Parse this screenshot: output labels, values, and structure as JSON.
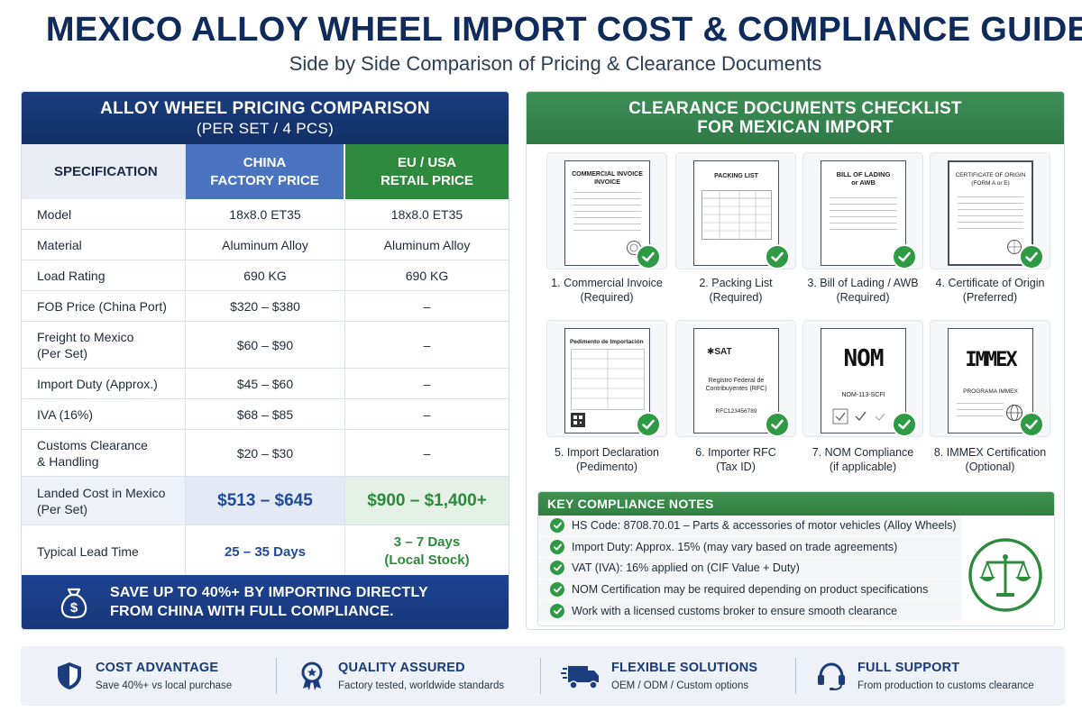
{
  "title": "MEXICO ALLOY WHEEL IMPORT COST & COMPLIANCE GUIDE",
  "subtitle": "Side by Side Comparison of Pricing & Clearance Documents",
  "pricing": {
    "header_line1": "ALLOY WHEEL PRICING COMPARISON",
    "header_line2": "(PER SET / 4 PCS)",
    "columns": {
      "spec": "SPECIFICATION",
      "china_line1": "CHINA",
      "china_line2": "FACTORY PRICE",
      "eu_line1": "EU / USA",
      "eu_line2": "RETAIL PRICE"
    },
    "rows": [
      {
        "spec": "Model",
        "china": "18x8.0 ET35",
        "eu": "18x8.0 ET35"
      },
      {
        "spec": "Material",
        "china": "Aluminum Alloy",
        "eu": "Aluminum Alloy"
      },
      {
        "spec": "Load Rating",
        "china": "690 KG",
        "eu": "690 KG"
      },
      {
        "spec": "FOB Price (China Port)",
        "china": "$320 – $380",
        "eu": "–"
      },
      {
        "spec": "Freight to Mexico (Per Set)",
        "china": "$60 – $90",
        "eu": "–"
      },
      {
        "spec": "Import Duty (Approx.)",
        "china": "$45 – $60",
        "eu": "–"
      },
      {
        "spec": "IVA (16%)",
        "china": "$68 – $85",
        "eu": "–"
      },
      {
        "spec": "Customs Clearance & Handling",
        "china": "$20 – $30",
        "eu": "–"
      }
    ],
    "landed": {
      "spec_line1": "Landed Cost in Mexico",
      "spec_line2": "(Per Set)",
      "china": "$513 – $645",
      "eu": "$900 – $1,400+"
    },
    "lead": {
      "spec": "Typical Lead Time",
      "china": "25 – 35 Days",
      "eu_line1": "3 – 7 Days",
      "eu_line2": "(Local Stock)"
    },
    "footer_line1": "SAVE UP TO 40%+ BY IMPORTING DIRECTLY",
    "footer_line2": "FROM CHINA WITH FULL COMPLIANCE."
  },
  "documents": {
    "header_line1": "CLEARANCE DOCUMENTS CHECKLIST",
    "header_line2": "FOR MEXICAN IMPORT",
    "items": [
      {
        "doc_title": "COMMERCIAL INVOICE\nINVOICE",
        "label1": "1. Commercial Invoice",
        "label2": "(Required)",
        "icon": "commercial-invoice-document-icon"
      },
      {
        "doc_title": "PACKING LIST",
        "label1": "2. Packing List",
        "label2": "(Required)",
        "icon": "packing-list-document-icon"
      },
      {
        "doc_title": "BILL OF LADING\nor AWB",
        "label1": "3. Bill of Lading / AWB",
        "label2": "(Required)",
        "icon": "bill-of-lading-document-icon"
      },
      {
        "doc_title": "CERTIFICATE OF ORIGIN\n(FORM A or E)",
        "label1": "4. Certificate of Origin",
        "label2": "(Preferred)",
        "icon": "certificate-of-origin-document-icon"
      },
      {
        "doc_title": "Pedimento de Importación",
        "label1": "5. Import Declaration",
        "label2": "(Pedimento)",
        "icon": "pedimento-document-icon"
      },
      {
        "doc_title": "SAT",
        "doc_body": "Registro Federal de Contribuyentes (RFC)",
        "doc_code": "RFC123456789",
        "label1": "6. Importer RFC",
        "label2": "(Tax ID)",
        "icon": "rfc-document-icon"
      },
      {
        "doc_title": "NOM",
        "doc_body": "NOM-113-SCFI",
        "label1": "7. NOM Compliance",
        "label2": "(if applicable)",
        "icon": "nom-document-icon"
      },
      {
        "doc_title": "IMMEX",
        "doc_body": "PROGRAMA IMMEX",
        "label1": "8. IMMEX Certification",
        "label2": "(Optional)",
        "icon": "immex-document-icon"
      }
    ]
  },
  "notes": {
    "header": "KEY COMPLIANCE NOTES",
    "items": [
      "HS Code: 8708.70.01 – Parts & accessories of motor vehicles (Alloy Wheels)",
      "Import Duty: Approx. 15% (may vary based on trade agreements)",
      "VAT (IVA): 16% applied on (CIF Value + Duty)",
      "NOM Certification may be required depending on product specifications",
      "Work with a licensed customs broker to ensure smooth clearance"
    ]
  },
  "features": [
    {
      "title": "COST ADVANTAGE",
      "desc": "Save 40%+ vs local purchase",
      "icon": "shield-icon"
    },
    {
      "title": "QUALITY ASSURED",
      "desc": "Factory tested, worldwide standards",
      "icon": "award-badge-icon"
    },
    {
      "title": "FLEXIBLE SOLUTIONS",
      "desc": "OEM / ODM / Custom options",
      "icon": "truck-icon"
    },
    {
      "title": "FULL SUPPORT",
      "desc": "From production to customs clearance",
      "icon": "headset-icon"
    }
  ],
  "colors": {
    "navy": "#1b3d7e",
    "green": "#2e8b3e",
    "blue": "#4a74c0"
  }
}
